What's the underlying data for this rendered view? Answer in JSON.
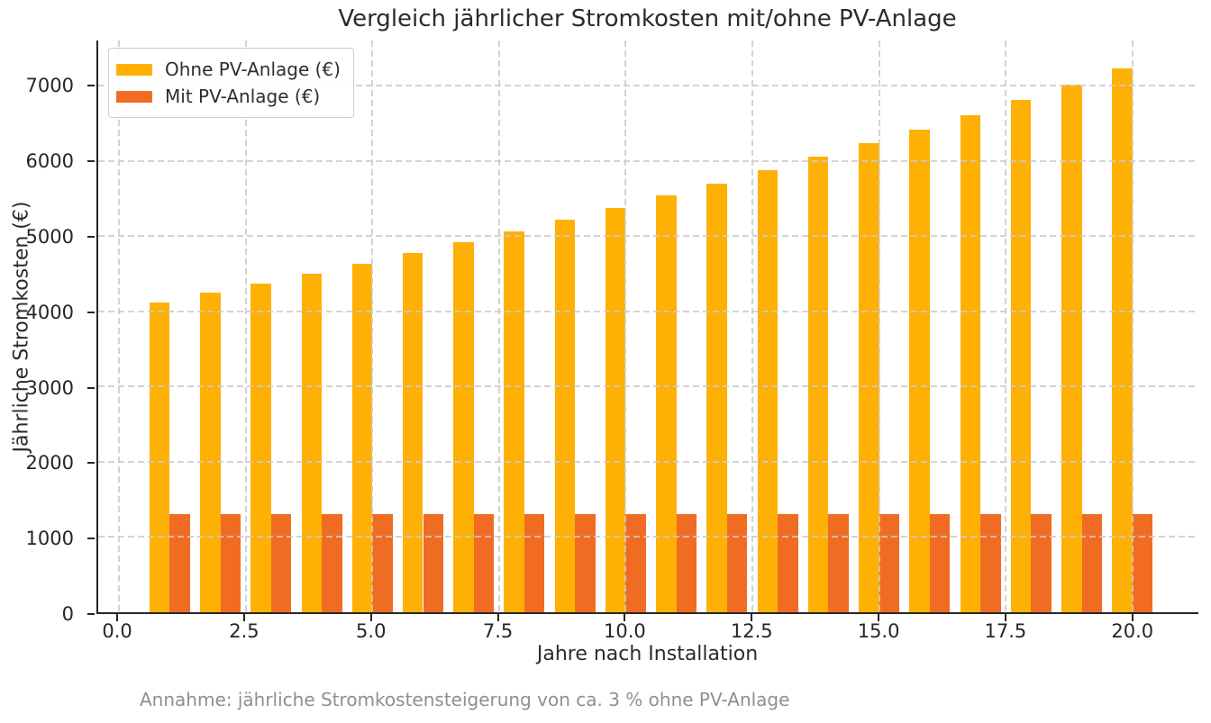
{
  "chart_data": {
    "type": "bar",
    "title": "Vergleich jährlicher Stromkosten mit/ohne PV-Anlage",
    "xlabel": "Jahre nach Installation",
    "ylabel": "Jährliche Stromkosten (€)",
    "footnote": "Annahme: jährliche Stromkostensteigerung von ca. 3 % ohne PV-Anlage",
    "x": [
      1,
      2,
      3,
      4,
      5,
      6,
      7,
      8,
      9,
      10,
      11,
      12,
      13,
      14,
      15,
      16,
      17,
      18,
      19,
      20
    ],
    "series": [
      {
        "name": "Ohne PV-Anlage (€)",
        "color": "#FFB005",
        "values": [
          4120.0,
          4243.6,
          4370.9,
          4502.0,
          4637.1,
          4776.2,
          4919.5,
          5067.1,
          5219.1,
          5375.7,
          5537.0,
          5703.1,
          5874.2,
          6050.4,
          6231.9,
          6418.9,
          6611.5,
          6809.8,
          7014.1,
          7224.5
        ]
      },
      {
        "name": "Mit PV-Anlage (€)",
        "color": "#F16C23",
        "values": [
          1300,
          1300,
          1300,
          1300,
          1300,
          1300,
          1300,
          1300,
          1300,
          1300,
          1300,
          1300,
          1300,
          1300,
          1300,
          1300,
          1300,
          1300,
          1300,
          1300
        ]
      }
    ],
    "bar_width": 0.4,
    "xlim": [
      -0.41,
      21.3
    ],
    "ylim": [
      0,
      7600
    ],
    "xticks": [
      0,
      2.5,
      5,
      7.5,
      10,
      12.5,
      15,
      17.5,
      20
    ],
    "xtick_labels": [
      "0.0",
      "2.5",
      "5.0",
      "7.5",
      "10.0",
      "12.5",
      "15.0",
      "17.5",
      "20.0"
    ],
    "yticks": [
      0,
      1000,
      2000,
      3000,
      4000,
      5000,
      6000,
      7000
    ],
    "grid": true,
    "grid_on_top": true,
    "legend_position": "upper left",
    "colors": {
      "grid": "#cbcbcb",
      "spine": "#262626",
      "tick_text": "#262626",
      "footnote_text": "#8f8f8f",
      "background": "#ffffff"
    }
  }
}
